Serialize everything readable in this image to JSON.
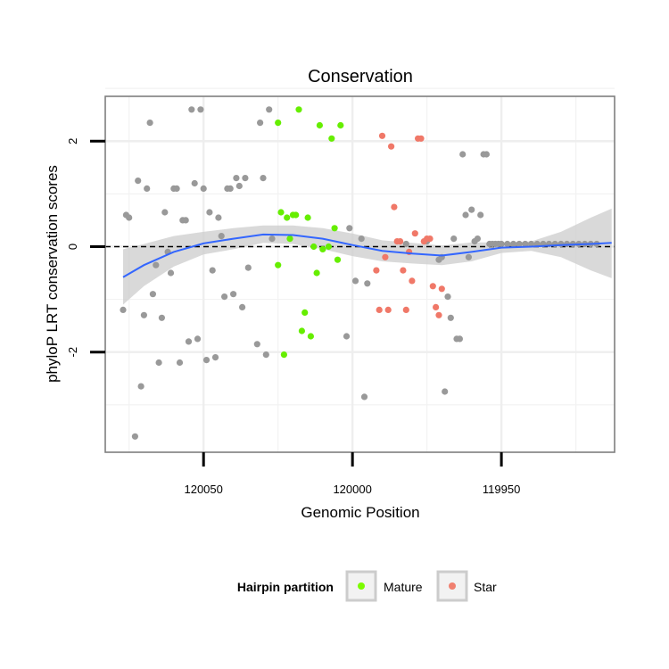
{
  "chart_data": {
    "type": "scatter",
    "title": "Conservation",
    "xlabel": "Genomic Position",
    "ylabel": "phyloP LRT conservation scores",
    "x_reversed": true,
    "xlim": [
      120083,
      119912
    ],
    "ylim": [
      -3.9,
      2.85
    ],
    "x_ticks": [
      120050,
      120000,
      119950
    ],
    "y_ticks": [
      -2,
      0,
      2
    ],
    "grid": true,
    "reference_line": {
      "y": 0,
      "style": "dashed"
    },
    "legend": {
      "title": "Hairpin partition",
      "position": "bottom",
      "entries": [
        {
          "label": "Mature",
          "color": "#7cfc00"
        },
        {
          "label": "Star",
          "color": "#f08070"
        }
      ]
    },
    "colors": {
      "other": "#999999",
      "mature": "#66ee00",
      "star": "#f07868",
      "smooth": "#3366ff",
      "band": "#cccccc"
    },
    "series": [
      {
        "category": "other",
        "points": [
          [
            120077,
            -1.2
          ],
          [
            120076,
            0.6
          ],
          [
            120075,
            0.55
          ],
          [
            120073,
            -3.6
          ],
          [
            120072,
            1.25
          ],
          [
            120071,
            -2.65
          ],
          [
            120070,
            -1.3
          ],
          [
            120069,
            1.1
          ],
          [
            120068,
            2.35
          ],
          [
            120067,
            -0.9
          ],
          [
            120066,
            -0.35
          ],
          [
            120065,
            -2.2
          ],
          [
            120064,
            -1.35
          ],
          [
            120063,
            0.65
          ],
          [
            120062,
            -0.1
          ],
          [
            120061,
            -0.5
          ],
          [
            120060,
            1.1
          ],
          [
            120059,
            1.1
          ],
          [
            120058,
            -2.2
          ],
          [
            120057,
            0.5
          ],
          [
            120056,
            0.5
          ],
          [
            120055,
            -1.8
          ],
          [
            120054,
            2.6
          ],
          [
            120053,
            1.2
          ],
          [
            120052,
            -1.75
          ],
          [
            120051,
            2.6
          ],
          [
            120050,
            1.1
          ],
          [
            120049,
            -2.15
          ],
          [
            120048,
            0.65
          ],
          [
            120047,
            -0.45
          ],
          [
            120046,
            -2.1
          ],
          [
            120045,
            0.55
          ],
          [
            120044,
            0.2
          ],
          [
            120043,
            -0.95
          ],
          [
            120042,
            1.1
          ],
          [
            120041,
            1.1
          ],
          [
            120040,
            -0.9
          ],
          [
            120039,
            1.3
          ],
          [
            120038,
            1.15
          ],
          [
            120037,
            -1.15
          ],
          [
            120036,
            1.3
          ],
          [
            120035,
            -0.4
          ],
          [
            120032,
            -1.85
          ],
          [
            120031,
            2.35
          ],
          [
            120030,
            1.3
          ],
          [
            120029,
            -2.05
          ],
          [
            120028,
            2.6
          ],
          [
            120027,
            0.15
          ],
          [
            120002,
            -1.7
          ],
          [
            120001,
            0.35
          ],
          [
            119999,
            -0.65
          ],
          [
            119997,
            0.15
          ],
          [
            119996,
            -2.85
          ],
          [
            119995,
            -0.7
          ],
          [
            119982,
            0.05
          ],
          [
            119975,
            0.1
          ],
          [
            119971,
            -0.25
          ],
          [
            119970,
            -0.2
          ],
          [
            119969,
            -2.75
          ],
          [
            119968,
            -0.95
          ],
          [
            119967,
            -1.35
          ],
          [
            119966,
            0.15
          ],
          [
            119965,
            -1.75
          ],
          [
            119964,
            -1.75
          ],
          [
            119963,
            1.75
          ],
          [
            119962,
            0.6
          ],
          [
            119961,
            -0.2
          ],
          [
            119960,
            0.7
          ],
          [
            119959,
            0.1
          ],
          [
            119958,
            0.15
          ],
          [
            119957,
            0.6
          ],
          [
            119956,
            1.75
          ],
          [
            119955,
            1.75
          ],
          [
            119954,
            0.05
          ],
          [
            119953,
            0.05
          ],
          [
            119952,
            0.05
          ],
          [
            119951,
            0.05
          ],
          [
            119950,
            0.05
          ],
          [
            119948,
            0.05
          ],
          [
            119946,
            0.05
          ],
          [
            119944,
            0.05
          ],
          [
            119942,
            0.05
          ],
          [
            119940,
            0.05
          ],
          [
            119938,
            0.05
          ],
          [
            119936,
            0.05
          ],
          [
            119934,
            0.05
          ],
          [
            119932,
            0.05
          ],
          [
            119930,
            0.05
          ],
          [
            119928,
            0.05
          ],
          [
            119926,
            0.05
          ],
          [
            119924,
            0.05
          ],
          [
            119922,
            0.05
          ],
          [
            119920,
            0.05
          ],
          [
            119918,
            0.05
          ]
        ]
      },
      {
        "name": "Mature",
        "category": "mature",
        "points": [
          [
            120025,
            2.35
          ],
          [
            120025,
            -0.35
          ],
          [
            120024,
            0.65
          ],
          [
            120023,
            -2.05
          ],
          [
            120022,
            0.55
          ],
          [
            120021,
            0.15
          ],
          [
            120020,
            0.6
          ],
          [
            120019,
            0.6
          ],
          [
            120018,
            2.6
          ],
          [
            120017,
            -1.6
          ],
          [
            120016,
            -1.25
          ],
          [
            120015,
            0.55
          ],
          [
            120014,
            -1.7
          ],
          [
            120013,
            0.0
          ],
          [
            120012,
            -0.5
          ],
          [
            120011,
            2.3
          ],
          [
            120010,
            -0.05
          ],
          [
            120008,
            0.0
          ],
          [
            120007,
            2.05
          ],
          [
            120006,
            0.35
          ],
          [
            120005,
            -0.25
          ],
          [
            120004,
            2.3
          ]
        ]
      },
      {
        "name": "Star",
        "category": "star",
        "points": [
          [
            119992,
            -0.45
          ],
          [
            119991,
            -1.2
          ],
          [
            119990,
            2.1
          ],
          [
            119989,
            -0.2
          ],
          [
            119988,
            -1.2
          ],
          [
            119987,
            1.9
          ],
          [
            119986,
            0.75
          ],
          [
            119985,
            0.1
          ],
          [
            119984,
            0.1
          ],
          [
            119983,
            -0.45
          ],
          [
            119982,
            -1.2
          ],
          [
            119981,
            -0.1
          ],
          [
            119980,
            -0.65
          ],
          [
            119979,
            0.25
          ],
          [
            119978,
            2.05
          ],
          [
            119977,
            2.05
          ],
          [
            119976,
            0.1
          ],
          [
            119975,
            0.15
          ],
          [
            119974,
            0.15
          ],
          [
            119973,
            -0.75
          ],
          [
            119972,
            -1.15
          ],
          [
            119971,
            -1.3
          ],
          [
            119970,
            -0.8
          ]
        ]
      }
    ],
    "smooth": {
      "method": "loess",
      "x": [
        120077,
        120070,
        120060,
        120050,
        120040,
        120030,
        120020,
        120010,
        120000,
        119990,
        119980,
        119970,
        119960,
        119950,
        119940,
        119930,
        119920,
        119913
      ],
      "y": [
        -0.58,
        -0.35,
        -0.1,
        0.06,
        0.15,
        0.23,
        0.22,
        0.15,
        0.03,
        -0.08,
        -0.13,
        -0.17,
        -0.1,
        -0.02,
        0.0,
        0.03,
        0.05,
        0.07
      ],
      "lower": [
        -1.1,
        -0.75,
        -0.38,
        -0.15,
        -0.05,
        0.07,
        0.05,
        -0.05,
        -0.18,
        -0.28,
        -0.32,
        -0.35,
        -0.28,
        -0.12,
        -0.08,
        -0.2,
        -0.45,
        -0.6
      ],
      "upper": [
        -0.05,
        0.05,
        0.2,
        0.28,
        0.35,
        0.4,
        0.4,
        0.35,
        0.25,
        0.12,
        0.07,
        0.02,
        0.08,
        0.08,
        0.1,
        0.28,
        0.55,
        0.72
      ]
    }
  }
}
